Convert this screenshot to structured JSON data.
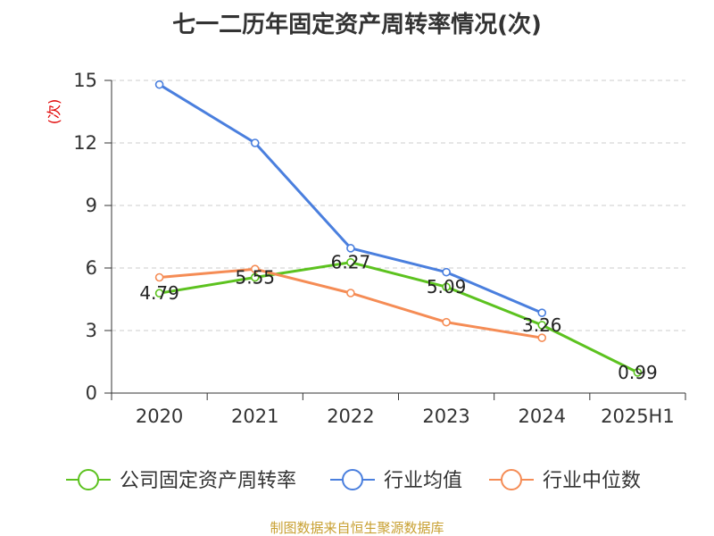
{
  "colors": {
    "company": "#5cc21f",
    "industry_avg": "#4a7fde",
    "industry_median": "#f58c55",
    "grid": "#cccccc",
    "axis": "#333333"
  },
  "chart_data": {
    "type": "line",
    "title": "七一二历年固定资产周转率情况(次)",
    "ylabel": "(次)",
    "xlabel": "",
    "categories": [
      "2020",
      "2021",
      "2022",
      "2023",
      "2024",
      "2025H1"
    ],
    "ylim": [
      0,
      15
    ],
    "yticks": [
      0,
      3,
      6,
      9,
      12,
      15
    ],
    "grid": true,
    "legend_position": "bottom",
    "series": [
      {
        "name": "公司固定资产周转率",
        "values": [
          4.79,
          5.55,
          6.27,
          5.09,
          3.26,
          0.99
        ],
        "show_labels": true
      },
      {
        "name": "行业均值",
        "values": [
          14.8,
          12.0,
          6.95,
          5.8,
          3.85,
          null
        ],
        "show_labels": false
      },
      {
        "name": "行业中位数",
        "values": [
          5.55,
          5.95,
          4.8,
          3.4,
          2.65,
          null
        ],
        "show_labels": false
      }
    ],
    "source": "制图数据来自恒生聚源数据库"
  }
}
